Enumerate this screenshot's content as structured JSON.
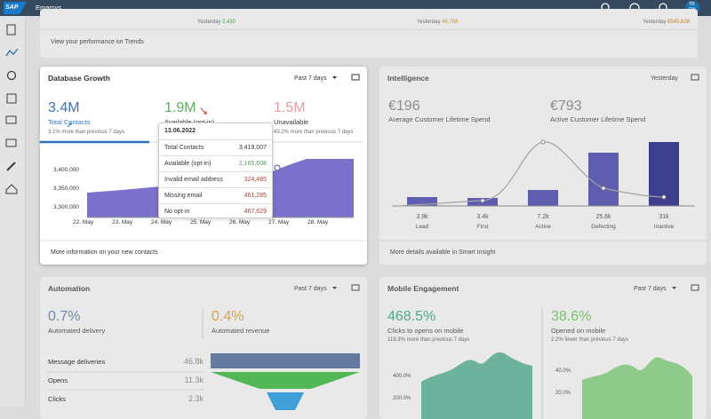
{
  "topbar": {
    "logo": "SAP",
    "brand": "Emarsys",
    "avatar": [
      "TR",
      "OX"
    ]
  },
  "trends": {
    "items": [
      {
        "label": "Yesterday",
        "value": "2,430"
      },
      {
        "label": "Yesterday",
        "value": "46,768"
      },
      {
        "label": "Yesterday",
        "value": "€545,628"
      }
    ],
    "link": "View your performance on Trends"
  },
  "database_growth": {
    "title": "Database Growth",
    "period": "Past 7 days",
    "kpis": [
      {
        "value": "3.4M",
        "label": "Total Contacts",
        "note": "3.1% more than previous 7 days"
      },
      {
        "value": "1.9M",
        "label": "Available (opt-in)"
      },
      {
        "value": "1.5M",
        "label": "Unavailable",
        "note": "43.2% more than previous 7 days"
      }
    ],
    "yticks": [
      "3,400,000",
      "3,350,000",
      "3,300,000"
    ],
    "xticks": [
      "22. May",
      "23. May",
      "24. May",
      "25. May",
      "26. May",
      "27. May",
      "28. May"
    ],
    "tooltip": {
      "date": "13.06.2022",
      "rows": [
        [
          "Total Contacts",
          "3,419,007"
        ],
        [
          "Available (opt-in)",
          "2,165,608"
        ],
        [
          "Invalid email address",
          "324,485"
        ],
        [
          "Missing email",
          "461,285"
        ],
        [
          "No opt-in",
          "467,629"
        ]
      ]
    },
    "footer": "More information on your new contacts"
  },
  "intelligence": {
    "title": "Intelligence",
    "period": "Yesterday",
    "kpis": [
      {
        "value": "€196",
        "label": "Average Customer Lifetime Spend"
      },
      {
        "value": "€793",
        "label": "Active Customer Lifetime Spend"
      }
    ],
    "bars": [
      {
        "value": "3.9k",
        "label": "Lead"
      },
      {
        "value": "3.4k",
        "label": "First"
      },
      {
        "value": "7.2k",
        "label": "Active"
      },
      {
        "value": "25.6k",
        "label": "Defecting"
      },
      {
        "value": "31k",
        "label": "Inactive"
      }
    ],
    "footer": "More details available in Smart Insight"
  },
  "automation": {
    "title": "Automation",
    "period": "Past 7 days",
    "kpis": [
      {
        "value": "0.7%",
        "label": "Automated delivery"
      },
      {
        "value": "0.4%",
        "label": "Automated revenue"
      }
    ],
    "rows": [
      [
        "Message deliveries",
        "46.8k"
      ],
      [
        "Opens",
        "11.3k"
      ],
      [
        "Clicks",
        "2.3k"
      ]
    ]
  },
  "mobile": {
    "title": "Mobile Engagement",
    "period": "Past 7 days",
    "kpis": [
      {
        "value": "468.5%",
        "label": "Clicks to opens on mobile",
        "note": "119.3% more than previous 7 days"
      },
      {
        "value": "38.6%",
        "label": "Opened on mobile",
        "note": "2.2% fewer than previous 7 days"
      }
    ],
    "yticks_left": [
      "400.0%",
      "200.0%"
    ],
    "yticks_right": [
      "40.0%",
      "20.0%"
    ]
  }
}
